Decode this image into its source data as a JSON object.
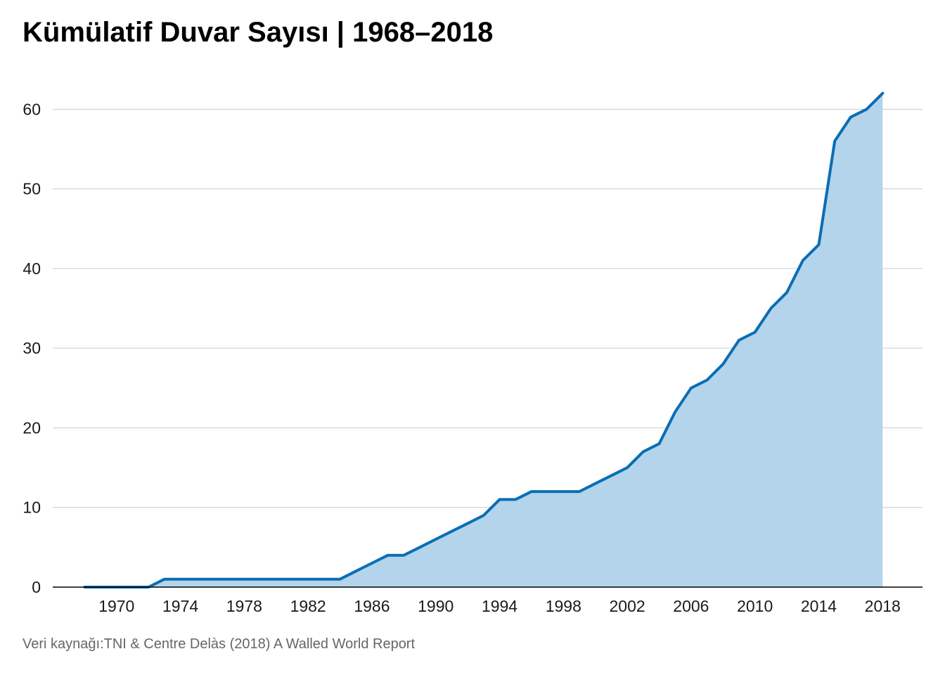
{
  "chart_data": {
    "type": "area",
    "title": "Kümülatif Duvar Sayısı | 1968–2018",
    "source": "Veri kaynağı:TNI & Centre Delàs (2018) A Walled World Report",
    "xlabel": "",
    "ylabel": "",
    "xlim": [
      1966,
      2020.5
    ],
    "ylim": [
      0,
      64
    ],
    "x_ticks": [
      1970,
      1974,
      1978,
      1982,
      1986,
      1990,
      1994,
      1998,
      2002,
      2006,
      2010,
      2014,
      2018
    ],
    "y_ticks": [
      0,
      10,
      20,
      30,
      40,
      50,
      60
    ],
    "grid": true,
    "line_color": "#0a6eb4",
    "fill_color": "#b3d4eb",
    "series": [
      {
        "x": [
          1968,
          1969,
          1970,
          1971,
          1972,
          1973,
          1974,
          1975,
          1976,
          1977,
          1978,
          1979,
          1980,
          1981,
          1982,
          1983,
          1984,
          1985,
          1986,
          1987,
          1988,
          1989,
          1990,
          1991,
          1992,
          1993,
          1994,
          1995,
          1996,
          1997,
          1998,
          1999,
          2000,
          2001,
          2002,
          2003,
          2004,
          2005,
          2006,
          2007,
          2008,
          2009,
          2010,
          2011,
          2012,
          2013,
          2014,
          2015,
          2016,
          2017,
          2018
        ],
        "values": [
          0,
          0,
          0,
          0,
          0,
          1,
          1,
          1,
          1,
          1,
          1,
          1,
          1,
          1,
          1,
          1,
          1,
          2,
          3,
          4,
          4,
          5,
          6,
          7,
          8,
          9,
          11,
          11,
          12,
          12,
          12,
          12,
          13,
          14,
          15,
          17,
          18,
          22,
          25,
          26,
          28,
          31,
          32,
          35,
          37,
          41,
          43,
          56,
          59,
          60,
          62
        ]
      }
    ]
  }
}
